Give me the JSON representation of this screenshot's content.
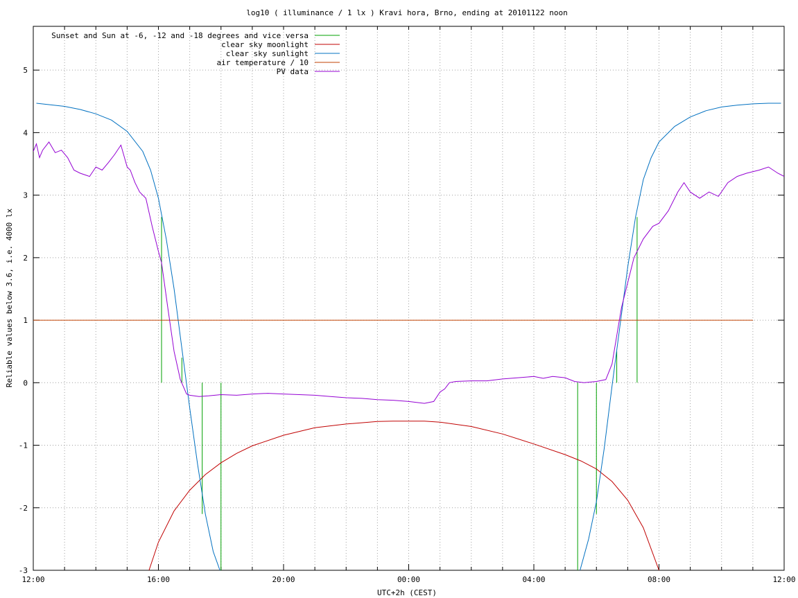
{
  "chart_data": {
    "type": "line",
    "title": "log10 ( illuminance / 1 lx ) Kravi hora, Brno, ending at 20101122 noon",
    "xlabel": "UTC+2h (CEST)",
    "ylabel": "Reliable values below 3.6, i.e. 4000 lx",
    "xlim": [
      12,
      36
    ],
    "ylim": [
      -3,
      5.7
    ],
    "grid": true,
    "legend_position": "top-left",
    "x_ticks": [
      {
        "value": 12,
        "label": "12:00"
      },
      {
        "value": 16,
        "label": "16:00"
      },
      {
        "value": 20,
        "label": "20:00"
      },
      {
        "value": 24,
        "label": "00:00"
      },
      {
        "value": 28,
        "label": "04:00"
      },
      {
        "value": 32,
        "label": "08:00"
      },
      {
        "value": 36,
        "label": "12:00"
      }
    ],
    "x_minor_grid_step": 1,
    "y_ticks": [
      {
        "value": -3,
        "label": "-3"
      },
      {
        "value": -2,
        "label": "-2"
      },
      {
        "value": -1,
        "label": "-1"
      },
      {
        "value": 0,
        "label": "0"
      },
      {
        "value": 1,
        "label": "1"
      },
      {
        "value": 2,
        "label": "2"
      },
      {
        "value": 3,
        "label": "3"
      },
      {
        "value": 4,
        "label": "4"
      },
      {
        "value": 5,
        "label": "5"
      }
    ],
    "series": [
      {
        "name": "Sunset and Sun at -6, -12 and -18 degrees and vice versa",
        "color": "#00a000",
        "style": "impulses",
        "points": [
          {
            "x": 16.1,
            "y": 2.65
          },
          {
            "x": 16.75,
            "y": 0.4
          },
          {
            "x": 17.4,
            "y": -2.1
          },
          {
            "x": 18.0,
            "y": -3.0
          },
          {
            "x": 29.4,
            "y": -3.0
          },
          {
            "x": 30.0,
            "y": -2.1
          },
          {
            "x": 30.65,
            "y": 0.5
          },
          {
            "x": 31.3,
            "y": 2.65
          }
        ]
      },
      {
        "name": "clear sky moonlight",
        "color": "#c00000",
        "style": "line",
        "x": [
          15.5,
          16.0,
          16.5,
          17.0,
          17.5,
          18.0,
          18.5,
          19.0,
          20.0,
          21.0,
          22.0,
          23.0,
          23.5,
          24.0,
          24.5,
          25.0,
          26.0,
          27.0,
          28.0,
          29.0,
          29.5,
          30.0,
          30.5,
          31.0,
          31.5,
          32.0,
          32.2
        ],
        "y": [
          -3.3,
          -2.55,
          -2.05,
          -1.72,
          -1.47,
          -1.28,
          -1.13,
          -1.01,
          -0.84,
          -0.72,
          -0.66,
          -0.62,
          -0.615,
          -0.615,
          -0.615,
          -0.63,
          -0.7,
          -0.82,
          -0.98,
          -1.15,
          -1.25,
          -1.38,
          -1.58,
          -1.88,
          -2.32,
          -3.0,
          -3.3
        ]
      },
      {
        "name": "clear sky sunlight",
        "color": "#0070c0",
        "style": "line",
        "x": [
          12.1,
          13.0,
          13.5,
          14.0,
          14.5,
          15.0,
          15.5,
          15.75,
          16.0,
          16.25,
          16.5,
          16.75,
          17.0,
          17.25,
          17.5,
          17.75,
          18.0,
          29.45,
          29.75,
          30.0,
          30.25,
          30.5,
          30.75,
          31.0,
          31.25,
          31.5,
          31.75,
          32.0,
          32.5,
          33.0,
          33.5,
          34.0,
          34.5,
          35.0,
          35.5,
          35.9
        ],
        "y": [
          4.47,
          4.42,
          4.37,
          4.3,
          4.2,
          4.02,
          3.7,
          3.4,
          2.95,
          2.3,
          1.5,
          0.55,
          -0.4,
          -1.3,
          -2.1,
          -2.7,
          -3.05,
          -3.05,
          -2.5,
          -1.9,
          -1.05,
          -0.05,
          0.9,
          1.85,
          2.65,
          3.25,
          3.6,
          3.85,
          4.1,
          4.25,
          4.35,
          4.41,
          4.44,
          4.46,
          4.47,
          4.47
        ]
      },
      {
        "name": "air temperature / 10",
        "color": "#c04000",
        "style": "line",
        "x": [
          12.0,
          35.0
        ],
        "y": [
          1.0,
          1.0
        ]
      },
      {
        "name": "PV data",
        "color": "#9400d3",
        "style": "line",
        "x": [
          12.0,
          12.1,
          12.2,
          12.3,
          12.5,
          12.7,
          12.9,
          13.1,
          13.3,
          13.5,
          13.8,
          14.0,
          14.2,
          14.4,
          14.6,
          14.8,
          15.0,
          15.1,
          15.25,
          15.4,
          15.6,
          15.8,
          16.0,
          16.1,
          16.3,
          16.5,
          16.7,
          16.9,
          17.0,
          17.3,
          17.6,
          18.0,
          18.5,
          19.0,
          19.5,
          20.0,
          20.5,
          21.0,
          21.5,
          22.0,
          22.5,
          23.0,
          23.5,
          24.0,
          24.5,
          24.8,
          25.0,
          25.15,
          25.3,
          25.5,
          26.0,
          26.5,
          27.0,
          27.5,
          28.0,
          28.3,
          28.6,
          29.0,
          29.3,
          29.6,
          30.0,
          30.3,
          30.5,
          30.7,
          30.8,
          31.0,
          31.2,
          31.5,
          31.8,
          32.0,
          32.3,
          32.6,
          32.8,
          33.0,
          33.3,
          33.6,
          33.9,
          34.2,
          34.5,
          34.8,
          35.2,
          35.5,
          35.8,
          36.0
        ],
        "y": [
          3.7,
          3.82,
          3.6,
          3.72,
          3.85,
          3.68,
          3.72,
          3.6,
          3.4,
          3.35,
          3.3,
          3.45,
          3.4,
          3.52,
          3.65,
          3.8,
          3.45,
          3.4,
          3.2,
          3.05,
          2.95,
          2.5,
          2.1,
          1.92,
          1.2,
          0.5,
          0.05,
          -0.18,
          -0.2,
          -0.22,
          -0.21,
          -0.19,
          -0.2,
          -0.18,
          -0.17,
          -0.18,
          -0.19,
          -0.2,
          -0.22,
          -0.24,
          -0.25,
          -0.27,
          -0.28,
          -0.3,
          -0.33,
          -0.3,
          -0.15,
          -0.1,
          0.0,
          0.02,
          0.03,
          0.03,
          0.06,
          0.08,
          0.1,
          0.07,
          0.1,
          0.08,
          0.02,
          0.0,
          0.02,
          0.05,
          0.3,
          0.9,
          1.2,
          1.6,
          2.0,
          2.3,
          2.5,
          2.55,
          2.75,
          3.05,
          3.2,
          3.05,
          2.95,
          3.05,
          2.98,
          3.2,
          3.3,
          3.35,
          3.4,
          3.45,
          3.35,
          3.3
        ]
      }
    ]
  }
}
